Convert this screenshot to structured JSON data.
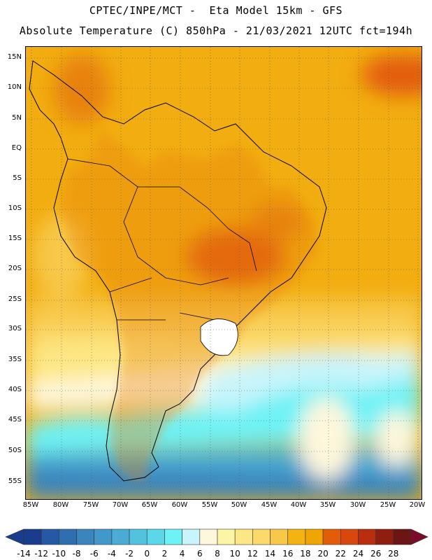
{
  "header": {
    "line1": "CPTEC/INPE/MCT -  Eta Model 15km - GFS",
    "line2": "Absolute Temperature (C) 850hPa - 21/03/2021 12UTC fct=194h"
  },
  "map": {
    "lat_labels": [
      "15N",
      "10N",
      "5N",
      "EQ",
      "5S",
      "10S",
      "15S",
      "20S",
      "25S",
      "30S",
      "35S",
      "40S",
      "45S",
      "50S",
      "55S"
    ],
    "lon_labels": [
      "85W",
      "80W",
      "75W",
      "70W",
      "65W",
      "60W",
      "55W",
      "50W",
      "45W",
      "40W",
      "35W",
      "30W",
      "25W",
      "20W"
    ],
    "lon_range": [
      -85,
      -20
    ],
    "lat_range": [
      -58,
      17
    ],
    "gridlines": "dotted"
  },
  "colorbar": {
    "labels": [
      "-14",
      "-12",
      "-10",
      "-8",
      "-6",
      "-4",
      "-2",
      "0",
      "2",
      "4",
      "6",
      "8",
      "10",
      "12",
      "14",
      "16",
      "18",
      "20",
      "22",
      "24",
      "26",
      "28"
    ],
    "colors": [
      "#1a3c8c",
      "#2559a3",
      "#2f6fb0",
      "#3a85be",
      "#4298c8",
      "#4aacd4",
      "#52c2df",
      "#5ad8ea",
      "#6ef2f6",
      "#c8f4fb",
      "#fef7dc",
      "#fdf5a6",
      "#fde785",
      "#fbd96a",
      "#f8c849",
      "#f3b312",
      "#f0a500",
      "#e35d08",
      "#d94610",
      "#b82e0e",
      "#8f1d10",
      "#6b1515"
    ],
    "left_arrow_color": "#1a3c8c",
    "right_arrow_color": "#7a0c2a"
  }
}
